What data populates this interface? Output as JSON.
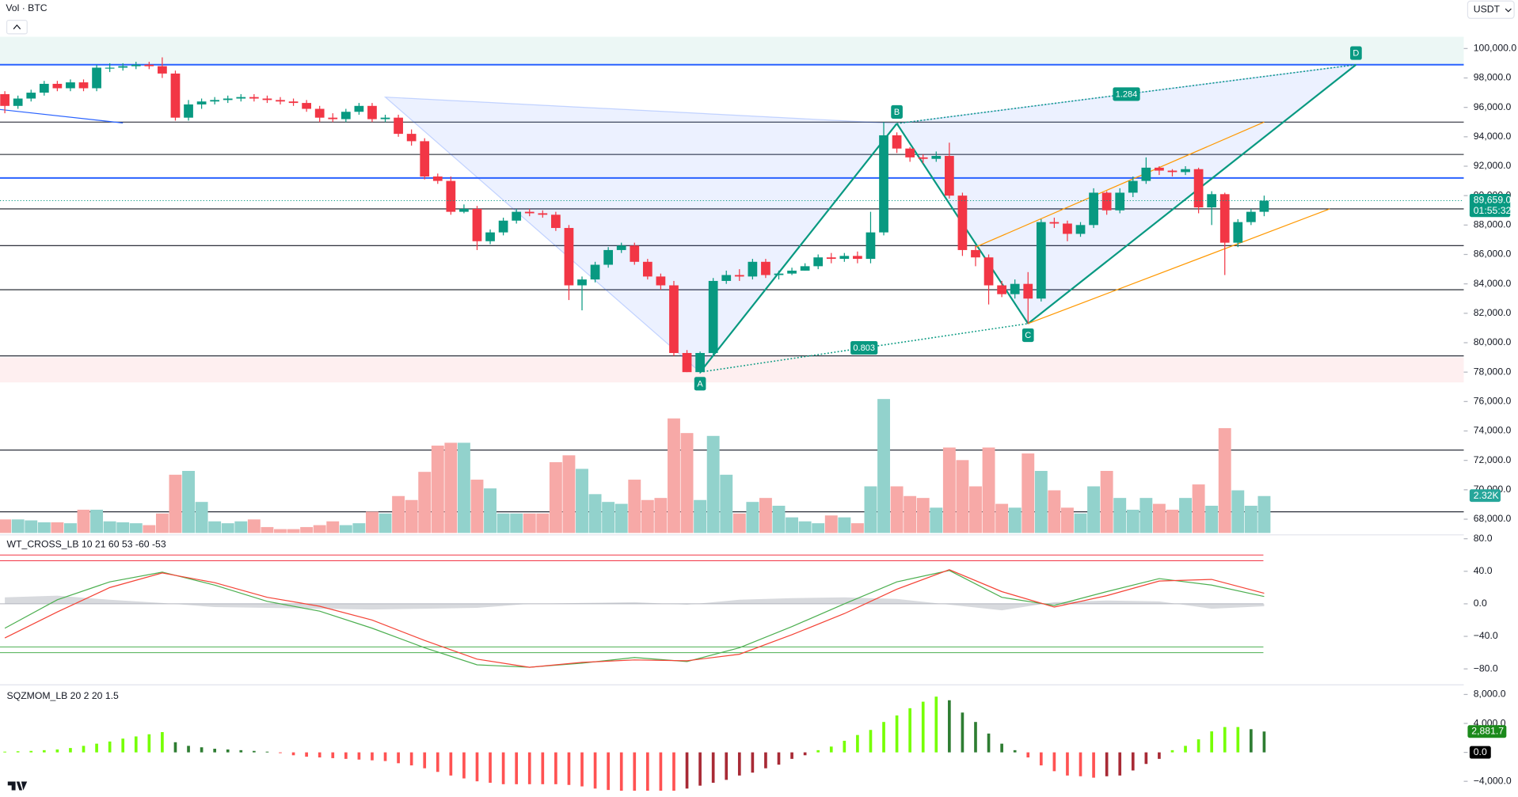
{
  "chart_data": [
    {
      "type": "candlestick",
      "title": "Vol · BTC",
      "currency": "USDT",
      "colors": {
        "up": "#089981",
        "down": "#f23645"
      },
      "open": [
        96900,
        96100,
        96600,
        97000,
        97600,
        97300,
        97700,
        97300,
        98700,
        98700,
        98800,
        98900,
        98800,
        98300,
        95300,
        96200,
        96400,
        96500,
        96600,
        96700,
        96600,
        96500,
        96400,
        96300,
        95900,
        95300,
        95200,
        95700,
        96100,
        95200,
        95300,
        94200,
        93700,
        91300,
        91000,
        88900,
        89100,
        86900,
        87500,
        88300,
        88900,
        88800,
        88700,
        87800,
        83900,
        84300,
        85300,
        86300,
        86600,
        85500,
        84500,
        83900,
        79300,
        78000,
        79300,
        84200,
        84600,
        84500,
        85500,
        84600,
        84700,
        84900,
        85200,
        85800,
        85700,
        85900,
        85700,
        87500,
        94100,
        93200,
        92600,
        92500,
        92700,
        90000,
        86300,
        85800,
        83900,
        83300,
        84000,
        83000,
        88200,
        88100,
        87400,
        88000,
        90200,
        89000,
        90200,
        91000,
        91900,
        91700,
        91600,
        91800,
        89200,
        90100,
        86800,
        88200,
        88900
      ],
      "high": [
        97100,
        96800,
        97200,
        97800,
        97800,
        97900,
        97900,
        98900,
        99000,
        99000,
        99100,
        99100,
        99400,
        98500,
        96500,
        96600,
        96700,
        96800,
        96900,
        96900,
        96800,
        96700,
        96600,
        96500,
        96100,
        95600,
        95900,
        96300,
        96300,
        95500,
        95500,
        94500,
        93900,
        91500,
        91300,
        89400,
        89300,
        87700,
        88500,
        89100,
        89100,
        89000,
        88900,
        88000,
        84500,
        85500,
        86500,
        86800,
        86800,
        85700,
        84700,
        84200,
        79500,
        79400,
        84400,
        84900,
        85000,
        85700,
        85700,
        84900,
        85100,
        85400,
        86000,
        86100,
        86100,
        86200,
        88900,
        95000,
        94300,
        93300,
        92800,
        93000,
        93600,
        90200,
        86600,
        86000,
        84200,
        84300,
        84800,
        88400,
        88500,
        88300,
        88200,
        90500,
        90300,
        90500,
        91300,
        92600,
        92000,
        91800,
        92000,
        91900,
        90300,
        90200,
        88400,
        89100,
        90000
      ],
      "low": [
        95600,
        95900,
        96400,
        96800,
        97100,
        97100,
        97100,
        97100,
        98400,
        98500,
        98600,
        98600,
        98000,
        95100,
        95100,
        95900,
        96200,
        96300,
        96400,
        96400,
        96300,
        96200,
        96100,
        95700,
        95000,
        95000,
        95000,
        95500,
        95000,
        95000,
        94000,
        93400,
        91100,
        90800,
        88700,
        88800,
        86300,
        86700,
        87300,
        88100,
        88600,
        88500,
        87600,
        82900,
        82200,
        84100,
        85100,
        86100,
        85300,
        84300,
        83600,
        79100,
        78000,
        77900,
        79100,
        84000,
        84200,
        84300,
        84400,
        84300,
        84600,
        84900,
        85000,
        85400,
        85500,
        85400,
        85400,
        87300,
        92900,
        92300,
        92200,
        92300,
        89800,
        85900,
        85200,
        82600,
        83100,
        83000,
        81300,
        82800,
        87800,
        86900,
        87200,
        87800,
        88700,
        88800,
        89900,
        90800,
        91400,
        91300,
        91400,
        88800,
        88000,
        84600,
        86500,
        88000,
        88600
      ],
      "close": [
        96100,
        96600,
        97000,
        97600,
        97300,
        97700,
        97300,
        98700,
        98700,
        98800,
        98900,
        98800,
        98300,
        95300,
        96200,
        96400,
        96500,
        96600,
        96700,
        96600,
        96500,
        96400,
        96300,
        95900,
        95300,
        95200,
        95700,
        96100,
        95200,
        95300,
        94200,
        93700,
        91300,
        91000,
        88900,
        89100,
        86900,
        87500,
        88300,
        88900,
        88800,
        88700,
        87800,
        83900,
        84300,
        85300,
        86300,
        86600,
        85500,
        84500,
        83900,
        79300,
        78000,
        79300,
        84200,
        84600,
        84500,
        85500,
        84600,
        84700,
        84900,
        85200,
        85800,
        85700,
        85900,
        85700,
        87500,
        94100,
        93200,
        92600,
        92500,
        92700,
        90000,
        86300,
        85800,
        83900,
        83300,
        84000,
        83000,
        88200,
        88100,
        87400,
        88000,
        90200,
        89000,
        90200,
        91000,
        91900,
        91700,
        91600,
        91800,
        89200,
        90100,
        86800,
        88200,
        88900,
        89659
      ],
      "ylim": [
        67000,
        103300
      ],
      "yticks": [
        {
          "value": 68000,
          "label": "68,000.0"
        },
        {
          "value": 70000,
          "label": "70,000.0"
        },
        {
          "value": 72000,
          "label": "72,000.0"
        },
        {
          "value": 74000,
          "label": "74,000.0"
        },
        {
          "value": 76000,
          "label": "76,000.0"
        },
        {
          "value": 78000,
          "label": "78,000.0"
        },
        {
          "value": 80000,
          "label": "80,000.0"
        },
        {
          "value": 82000,
          "label": "82,000.0"
        },
        {
          "value": 84000,
          "label": "84,000.0"
        },
        {
          "value": 86000,
          "label": "86,000.0"
        },
        {
          "value": 88000,
          "label": "88,000.0"
        },
        {
          "value": 90000,
          "label": "90,000.0"
        },
        {
          "value": 92000,
          "label": "92,000.0"
        },
        {
          "value": 94000,
          "label": "94,000.0"
        },
        {
          "value": 96000,
          "label": "96,000.0"
        },
        {
          "value": 98000,
          "label": "98,000.0"
        },
        {
          "value": 100000,
          "label": "100,000.0"
        }
      ],
      "last_price": {
        "value": 89659,
        "label": "89,659.0"
      },
      "countdown": "01:55:32",
      "levels": [
        {
          "value": 98900,
          "color": "#2962ff"
        },
        {
          "value": 91200,
          "color": "#2962ff"
        },
        {
          "value": 95000,
          "color": "#131722"
        },
        {
          "value": 92800,
          "color": "#131722"
        },
        {
          "value": 89100,
          "color": "#131722"
        },
        {
          "value": 86600,
          "color": "#131722"
        },
        {
          "value": 83600,
          "color": "#131722"
        },
        {
          "value": 79100,
          "color": "#131722"
        },
        {
          "value": 72700,
          "color": "#131722"
        },
        {
          "value": 68500,
          "color": "#131722"
        }
      ],
      "zones": [
        {
          "range": [
            98900,
            100800
          ],
          "color": "#089981"
        },
        {
          "range": [
            77300,
            79000
          ],
          "color": "#f23645"
        }
      ],
      "trendlines": [
        {
          "color": "#2962ff",
          "x": [
            -0.4,
            9
          ],
          "y": [
            95860,
            94940
          ]
        },
        {
          "color": "#ff9800",
          "x": [
            74,
            96
          ],
          "y": [
            86500,
            95000
          ]
        },
        {
          "color": "#ff9800",
          "x": [
            78,
            101
          ],
          "y": [
            81300,
            89100
          ]
        }
      ],
      "pattern": {
        "fill": "#2962ff",
        "line": "#089981",
        "points": [
          {
            "x": 29,
            "y": 96700
          },
          {
            "x": 53,
            "y": 78000,
            "label": "A"
          },
          {
            "x": 68,
            "y": 94900,
            "label": "B"
          },
          {
            "x": 78,
            "y": 81300,
            "label": "C"
          },
          {
            "x": 103,
            "y": 98900,
            "label": "D"
          }
        ]
      },
      "dotted": [
        {
          "x": [
            68,
            103
          ],
          "y": [
            94900,
            98900
          ],
          "label": 1.284
        },
        {
          "x": [
            53,
            78
          ],
          "y": [
            78000,
            81300
          ],
          "label": 0.803
        }
      ],
      "volume": {
        "colors": {
          "up": "#92d2cc",
          "down": "#f7a9a7"
        },
        "ylim": [
          0,
          9
        ],
        "values": [
          0.85,
          0.85,
          0.79,
          0.67,
          0.67,
          0.61,
          1.46,
          1.46,
          0.73,
          0.67,
          0.61,
          0.49,
          1.22,
          3.66,
          3.9,
          1.95,
          0.73,
          0.61,
          0.73,
          0.85,
          0.37,
          0.24,
          0.24,
          0.37,
          0.49,
          0.73,
          0.49,
          0.61,
          1.34,
          1.22,
          2.32,
          2.07,
          3.84,
          5.49,
          5.67,
          5.67,
          3.35,
          2.8,
          1.22,
          1.22,
          1.22,
          1.22,
          4.45,
          4.88,
          4.03,
          2.44,
          1.95,
          1.83,
          3.35,
          2.07,
          2.2,
          7.2,
          6.28,
          2.07,
          6.1,
          3.66,
          1.22,
          1.95,
          2.2,
          1.71,
          0.98,
          0.73,
          0.61,
          1.1,
          0.98,
          0.61,
          2.93,
          8.42,
          2.93,
          2.32,
          2.2,
          1.59,
          5.37,
          4.58,
          2.93,
          5.37,
          1.83,
          1.59,
          5.0,
          3.9,
          2.68,
          1.59,
          1.22,
          2.93,
          3.9,
          2.2,
          1.46,
          2.2,
          1.83,
          1.46,
          2.2,
          3.05,
          1.71,
          6.59,
          2.68,
          1.71,
          2.32
        ],
        "last": {
          "value": 2.32,
          "label": "2.32K"
        }
      }
    },
    {
      "type": "line",
      "title": "WT_CROSS_LB 10 21 60 53 -60 -53",
      "x": [
        0,
        4,
        8,
        12,
        16,
        20,
        24,
        28,
        32,
        36,
        40,
        44,
        48,
        52,
        56,
        60,
        64,
        68,
        72,
        76,
        80,
        84,
        88,
        92,
        96
      ],
      "series": [
        {
          "color": "#4caf50",
          "values": [
            -30,
            5,
            27,
            39,
            23,
            3,
            -9,
            -30,
            -54,
            -75,
            -78,
            -73,
            -66,
            -71,
            -54,
            -28,
            0,
            27,
            41,
            8,
            -2,
            15,
            31,
            23,
            9
          ]
        },
        {
          "color": "#f44336",
          "values": [
            -42,
            -10,
            20,
            38,
            26,
            8,
            -3,
            -20,
            -45,
            -68,
            -78,
            -72,
            -69,
            -70,
            -62,
            -38,
            -12,
            18,
            42,
            15,
            -4,
            10,
            28,
            30,
            13
          ]
        }
      ],
      "area": {
        "color": "#b2b5be",
        "values": [
          8,
          10,
          5,
          1,
          -4,
          -5,
          -6,
          -7,
          -6,
          -5,
          0,
          1,
          2,
          -1,
          5,
          7,
          8,
          6,
          -1,
          -8,
          2,
          4,
          3,
          -6,
          -3
        ]
      },
      "levels": [
        {
          "value": 60,
          "color": "#f23645"
        },
        {
          "value": 53,
          "color": "#f23645"
        },
        {
          "value": 0,
          "color": "#b2b5be"
        },
        {
          "value": -53,
          "color": "#4caf50"
        },
        {
          "value": -60,
          "color": "#4caf50"
        }
      ],
      "ylim": [
        -96,
        80
      ],
      "yticks": [
        {
          "value": 80,
          "label": "80.0"
        },
        {
          "value": 40,
          "label": "40.0"
        },
        {
          "value": 0,
          "label": "0.0"
        },
        {
          "value": -40,
          "label": "−40.0"
        },
        {
          "value": -80,
          "label": "−80.0"
        }
      ]
    },
    {
      "type": "bar",
      "title": "SQZMOM_LB 20 2 20 1.5",
      "colors": [
        "#76ff03",
        "#2e7d32",
        "#ff5252",
        "#a82a35"
      ],
      "values": [
        100,
        150,
        200,
        300,
        400,
        600,
        900,
        1200,
        1500,
        1900,
        2200,
        2500,
        2800,
        1400,
        900,
        700,
        500,
        400,
        300,
        200,
        100,
        -100,
        -400,
        -600,
        -700,
        -800,
        -900,
        -1000,
        -1100,
        -1200,
        -1500,
        -1800,
        -2200,
        -2700,
        -3200,
        -3600,
        -4000,
        -4200,
        -4400,
        -4400,
        -4400,
        -4400,
        -4400,
        -4500,
        -4700,
        -5000,
        -5200,
        -5300,
        -5300,
        -5300,
        -5300,
        -5300,
        -5000,
        -4600,
        -4200,
        -3800,
        -3200,
        -2800,
        -2200,
        -1700,
        -900,
        -400,
        300,
        800,
        1600,
        2400,
        3100,
        4200,
        5100,
        6100,
        7000,
        7700,
        7200,
        5500,
        4200,
        2600,
        1200,
        300,
        -700,
        -1800,
        -2600,
        -3200,
        -3300,
        -3500,
        -3300,
        -3200,
        -2500,
        -1600,
        -900,
        300,
        900,
        1800,
        2900,
        3500,
        3500,
        3200,
        2881.7
      ],
      "ylim": [
        -5900,
        8800
      ],
      "yticks": [
        {
          "value": 8000,
          "label": "8,000.0"
        },
        {
          "value": 4000,
          "label": "4,000.0"
        },
        {
          "value": 0,
          "label": "0.0"
        },
        {
          "value": -4000,
          "label": "−4,000.0"
        }
      ],
      "last_value": {
        "value": 2881.7,
        "label": "2,881.7"
      },
      "signal": {
        "value": 0,
        "label": "0.0"
      }
    }
  ]
}
